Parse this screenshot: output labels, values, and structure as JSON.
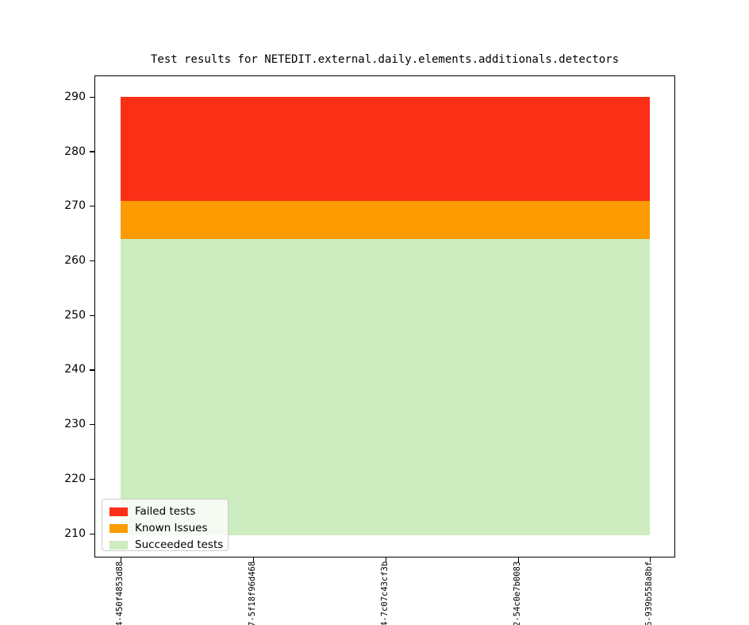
{
  "title": "Test results for NETEDIT.external.daily.elements.additionals.detectors",
  "colors": {
    "failed": "#fb2e16",
    "known_issues": "#fc9b02",
    "succeeded": "#cdecbf",
    "legend_border": "#cccccc",
    "axis": "#000000"
  },
  "y_axis": {
    "ticks": [
      "290",
      "280",
      "270",
      "260",
      "250",
      "240",
      "230",
      "220",
      "210"
    ]
  },
  "x_axis": {
    "labels": [
      "4-450f4853d88",
      "7-5f18f96d468",
      "4-7c07c43cf3b",
      "2-54c0e7b0083",
      "6-939b558a8bf"
    ]
  },
  "legend": {
    "items": [
      {
        "label": "Failed tests"
      },
      {
        "label": "Known Issues"
      },
      {
        "label": "Succeeded tests"
      }
    ]
  },
  "chart_data": {
    "type": "area",
    "stacked": true,
    "title": "Test results for NETEDIT.external.daily.elements.additionals.detectors",
    "x": [
      "4-450f4853d88",
      "7-5f18f96d468",
      "4-7c07c43cf3b",
      "2-54c0e7b0083",
      "6-939b558a8bf"
    ],
    "series": [
      {
        "name": "Succeeded tests",
        "color": "#cdecbf",
        "values": [
          264,
          264,
          264,
          264,
          264
        ]
      },
      {
        "name": "Known Issues",
        "color": "#fc9b02",
        "values": [
          7,
          7,
          7,
          7,
          7
        ]
      },
      {
        "name": "Failed tests",
        "color": "#fb2e16",
        "values": [
          19,
          19,
          19,
          19,
          19
        ]
      }
    ],
    "totals": [
      290,
      290,
      290,
      290,
      290
    ],
    "xlabel": "",
    "ylabel": "",
    "ylim": [
      206,
      294
    ],
    "y_ticks": [
      210,
      220,
      230,
      240,
      250,
      260,
      270,
      280,
      290
    ],
    "grid": false,
    "legend_position": "lower left",
    "x_tick_rotation": 90
  }
}
